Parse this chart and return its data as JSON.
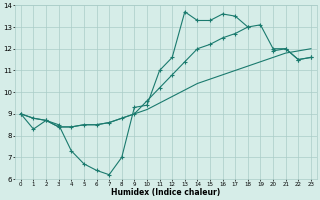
{
  "xlabel": "Humidex (Indice chaleur)",
  "bg_color": "#d6ede8",
  "grid_color": "#aaccc8",
  "line_color": "#1a7a6e",
  "xlim": [
    -0.5,
    23.5
  ],
  "ylim": [
    6,
    14
  ],
  "xticks": [
    0,
    1,
    2,
    3,
    4,
    5,
    6,
    7,
    8,
    9,
    10,
    11,
    12,
    13,
    14,
    15,
    16,
    17,
    18,
    19,
    20,
    21,
    22,
    23
  ],
  "yticks": [
    6,
    7,
    8,
    9,
    10,
    11,
    12,
    13,
    14
  ],
  "line1_x": [
    0,
    1,
    2,
    3,
    4,
    5,
    6,
    7,
    8,
    9,
    10,
    11,
    12,
    13,
    14,
    15,
    16,
    17,
    18,
    19,
    20,
    21,
    22,
    23
  ],
  "line1_y": [
    9.0,
    8.3,
    8.7,
    8.5,
    7.3,
    6.7,
    6.4,
    6.2,
    7.0,
    9.3,
    9.4,
    11.0,
    11.6,
    13.7,
    13.3,
    13.3,
    13.6,
    13.5,
    13.0,
    null,
    11.9,
    12.0,
    11.5,
    11.6
  ],
  "line2_x": [
    0,
    1,
    2,
    3,
    4,
    5,
    6,
    7,
    8,
    9,
    10,
    11,
    12,
    13,
    14,
    15,
    16,
    17,
    18,
    19,
    20,
    21,
    22,
    23
  ],
  "line2_y": [
    9.0,
    8.8,
    8.7,
    8.4,
    8.4,
    8.5,
    8.5,
    8.6,
    8.8,
    9.0,
    9.2,
    9.5,
    9.8,
    10.1,
    10.4,
    10.6,
    10.8,
    11.0,
    11.2,
    11.4,
    11.6,
    11.8,
    11.9,
    12.0
  ],
  "line3_x": [
    0,
    1,
    2,
    3,
    4,
    5,
    6,
    7,
    8,
    9,
    10,
    11,
    12,
    13,
    14,
    15,
    16,
    17,
    18,
    19,
    20,
    21,
    22,
    23
  ],
  "line3_y": [
    9.0,
    8.8,
    8.7,
    8.4,
    8.4,
    8.5,
    8.5,
    8.6,
    8.8,
    9.0,
    9.6,
    10.2,
    10.8,
    11.4,
    12.0,
    12.2,
    12.5,
    12.7,
    13.0,
    13.1,
    12.0,
    12.0,
    11.5,
    11.6
  ]
}
